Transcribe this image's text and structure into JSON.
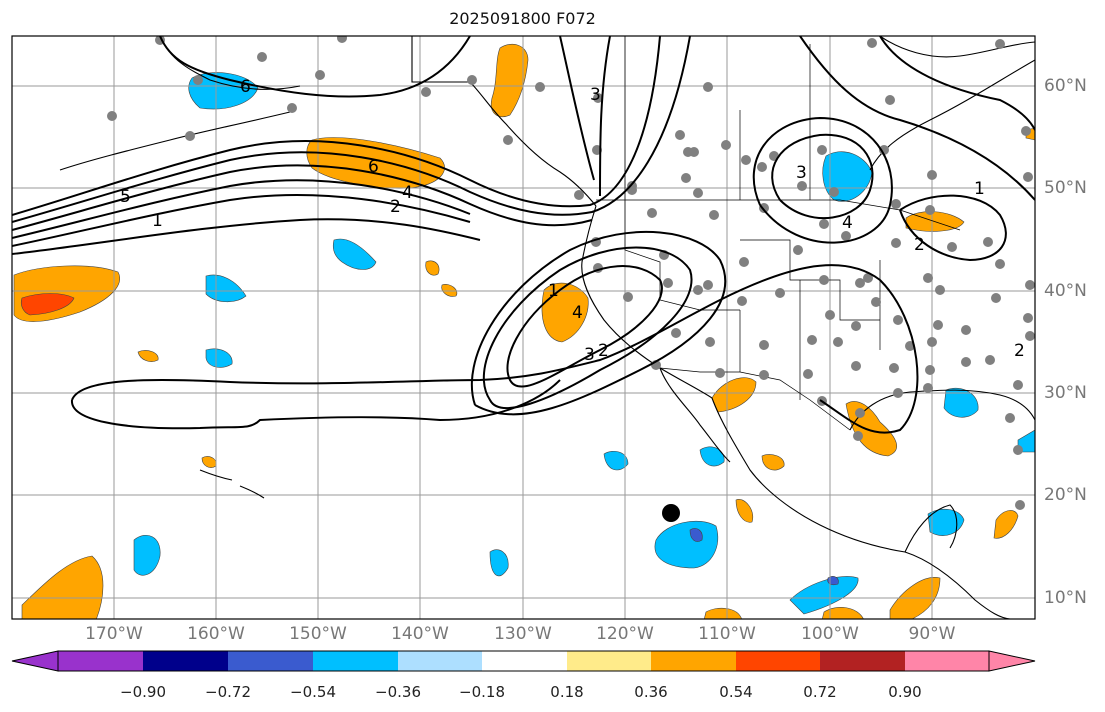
{
  "title": "2025091800 F072",
  "lon_labels": [
    "170°W",
    "160°W",
    "150°W",
    "140°W",
    "130°W",
    "120°W",
    "110°W",
    "100°W",
    "90°W"
  ],
  "lat_labels": [
    "60°N",
    "50°N",
    "40°N",
    "30°N",
    "20°N",
    "10°N"
  ],
  "contour_labels": [
    "6",
    "6",
    "5",
    "1",
    "2",
    "4",
    "3",
    "3",
    "4",
    "2",
    "1",
    "4",
    "3",
    "2",
    "1",
    "2"
  ],
  "colorbar": {
    "labels": [
      "−0.90",
      "−0.72",
      "−0.54",
      "−0.36",
      "−0.18",
      "0.18",
      "0.36",
      "0.54",
      "0.72",
      "0.90"
    ],
    "colors": [
      "#9932CC",
      "#00008B",
      "#3A5BCF",
      "#00BFFF",
      "#ADDFFF",
      "#FFFFFF",
      "#FFEB8A",
      "#FFA500",
      "#FF4500",
      "#B22222",
      "#FF85A8"
    ]
  },
  "colors": {
    "positive": "#FFA500",
    "strong_positive": "#FF4500",
    "negative": "#00BFFF",
    "strong_negative": "#3A5BCF",
    "station_dot": "#808080",
    "grid": "#9a9a9a"
  }
}
